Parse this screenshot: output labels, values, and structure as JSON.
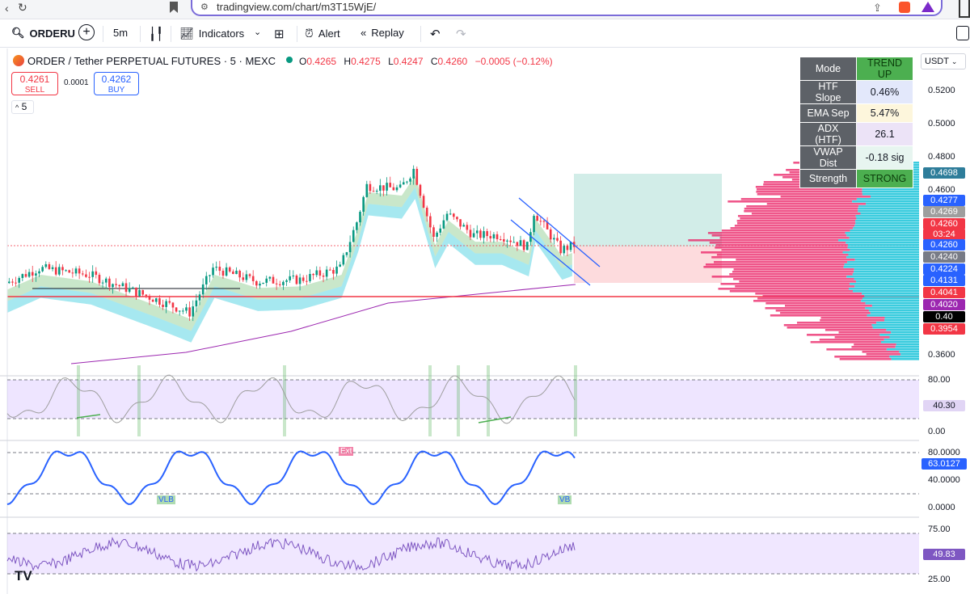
{
  "browser": {
    "url": "tradingview.com/chart/m3T15WjE/"
  },
  "toolbar": {
    "symbol": "ORDERU",
    "interval": "5m",
    "indicators_label": "Indicators",
    "alert_label": "Alert",
    "replay_label": "Replay"
  },
  "legend": {
    "title": "ORDER / Tether PERPETUAL FUTURES · 5 · MEXC",
    "open_label": "O",
    "open": "0.4265",
    "high_label": "H",
    "high": "0.4275",
    "low_label": "L",
    "low": "0.4247",
    "close_label": "C",
    "close": "0.4260",
    "change": "−0.0005 (−0.12%)",
    "sell_price": "0.4261",
    "sell_label": "SELL",
    "spread": "0.0001",
    "buy_price": "0.4262",
    "buy_label": "BUY",
    "collapse_count": "5"
  },
  "stats_table": [
    {
      "key": "Mode",
      "value": "TREND UP",
      "bg": "#4caf50",
      "fg": "#0b3d0b"
    },
    {
      "key": "HTF Slope",
      "value": "0.46%",
      "bg": "#e3e8fb",
      "fg": "#131722"
    },
    {
      "key": "EMA Sep",
      "value": "5.47%",
      "bg": "#fdf6dc",
      "fg": "#131722"
    },
    {
      "key": "ADX (HTF)",
      "value": "26.1",
      "bg": "#ece3f7",
      "fg": "#131722"
    },
    {
      "key": "VWAP Dist",
      "value": "-0.18 sig",
      "bg": "#e7f5f0",
      "fg": "#131722"
    },
    {
      "key": "Strength",
      "value": "STRONG",
      "bg": "#4caf50",
      "fg": "#0b3d0b"
    }
  ],
  "price_axis": {
    "currency": "USDT",
    "ticks": [
      "0.5200",
      "0.5000",
      "0.4800",
      "0.4600",
      "0.3600"
    ],
    "tags": [
      {
        "text": "0.4698",
        "bg": "#2e7d9a"
      },
      {
        "text": "0.4277",
        "bg": "#2962ff"
      },
      {
        "text": "0.4269",
        "bg": "#9e9e9e"
      },
      {
        "text": "0.4260",
        "bg": "#f23645"
      },
      {
        "text": "03:24",
        "bg": "#f23645"
      },
      {
        "text": "0.4260",
        "bg": "#2962ff"
      },
      {
        "text": "0.4240",
        "bg": "#787b86"
      },
      {
        "text": "0.4224",
        "bg": "#2962ff"
      },
      {
        "text": "0.4131",
        "bg": "#2962ff"
      },
      {
        "text": "0.4041",
        "bg": "#f23645"
      },
      {
        "text": "0.4020",
        "bg": "#9c27b0"
      },
      {
        "text": "0.40",
        "bg": "#000000"
      },
      {
        "text": "0.3954",
        "bg": "#f23645"
      }
    ]
  },
  "stoch_pane": {
    "ticks": [
      "80.00",
      "0.00"
    ],
    "current": "40.30"
  },
  "osc_pane": {
    "ticks": [
      "80.0000",
      "40.0000",
      "0.0000"
    ],
    "current": "63.0127",
    "labels": [
      "VLB",
      "Ext",
      "VB"
    ]
  },
  "rsi_pane": {
    "ticks": [
      "75.00",
      "25.00"
    ],
    "current": "49.83"
  },
  "colors": {
    "up": "#089981",
    "down": "#f23645",
    "accent": "#2962ff"
  }
}
